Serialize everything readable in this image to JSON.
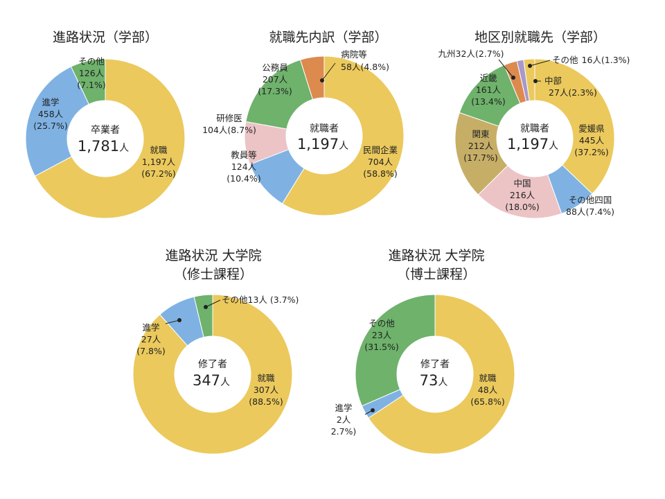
{
  "chart_data": [
    {
      "type": "pie",
      "title": "進路状況（学部）",
      "center": {
        "label": "卒業者",
        "value": "1,781",
        "unit": "人"
      },
      "slices": [
        {
          "name": "就職",
          "value": 1197,
          "count": "1,197人",
          "pct": "(67.2%)",
          "color": "#EBC95C"
        },
        {
          "name": "進学",
          "value": 458,
          "count": "458人",
          "pct": "(25.7%)",
          "color": "#7FB2E3"
        },
        {
          "name": "その他",
          "value": 126,
          "count": "126人",
          "pct": "(7.1%)",
          "color": "#6EB26B"
        }
      ]
    },
    {
      "type": "pie",
      "title": "就職先内訳（学部）",
      "center": {
        "label": "就職者",
        "value": "1,197",
        "unit": "人"
      },
      "slices": [
        {
          "name": "民間企業",
          "value": 704,
          "count": "704人",
          "pct": "(58.8%)",
          "color": "#EBC95C"
        },
        {
          "name": "教員等",
          "value": 124,
          "count": "124人",
          "pct": "(10.4%)",
          "color": "#7FB2E3"
        },
        {
          "name": "研修医",
          "value": 104,
          "count": "104人",
          "pct": "(8.7%)",
          "color": "#ECC4C6"
        },
        {
          "name": "公務員",
          "value": 207,
          "count": "207人",
          "pct": "(17.3%)",
          "color": "#6EB26B"
        },
        {
          "name": "病院等",
          "value": 58,
          "count": "58人",
          "pct": "(4.8%)",
          "color": "#DD8A4E"
        }
      ]
    },
    {
      "type": "pie",
      "title": "地区別就職先（学部）",
      "center": {
        "label": "就職者",
        "value": "1,197",
        "unit": "人"
      },
      "slices": [
        {
          "name": "愛媛県",
          "value": 445,
          "count": "445人",
          "pct": "(37.2%)",
          "color": "#EBC95C"
        },
        {
          "name": "その他四国",
          "value": 88,
          "count": "88人",
          "pct": "(7.4%)",
          "color": "#7FB2E3"
        },
        {
          "name": "中国",
          "value": 216,
          "count": "216人",
          "pct": "(18.0%)",
          "color": "#ECC4C6"
        },
        {
          "name": "関東",
          "value": 212,
          "count": "212人",
          "pct": "(17.7%)",
          "color": "#C6AE66"
        },
        {
          "name": "近畿",
          "value": 161,
          "count": "161人",
          "pct": "(13.4%)",
          "color": "#6EB26B"
        },
        {
          "name": "九州",
          "value": 32,
          "count": "32人",
          "pct": "(2.7%)",
          "color": "#DD8A4E"
        },
        {
          "name": "その他",
          "value": 16,
          "count": "16人",
          "pct": "(1.3%)",
          "color": "#A79AC9"
        },
        {
          "name": "中部",
          "value": 27,
          "count": "27人",
          "pct": "(2.3%)",
          "color": "#EBC95C"
        }
      ]
    },
    {
      "type": "pie",
      "title": "進路状況 大学院",
      "subtitle": "（修士課程）",
      "center": {
        "label": "修了者",
        "value": "347",
        "unit": "人"
      },
      "slices": [
        {
          "name": "就職",
          "value": 307,
          "count": "307人",
          "pct": "(88.5%)",
          "color": "#EBC95C"
        },
        {
          "name": "進学",
          "value": 27,
          "count": "27人",
          "pct": "(7.8%)",
          "color": "#7FB2E3"
        },
        {
          "name": "その他",
          "value": 13,
          "count": "13人",
          "pct": "(3.7%)",
          "color": "#6EB26B"
        }
      ]
    },
    {
      "type": "pie",
      "title": "進路状況 大学院",
      "subtitle": "（博士課程）",
      "center": {
        "label": "修了者",
        "value": "73",
        "unit": "人"
      },
      "slices": [
        {
          "name": "就職",
          "value": 48,
          "count": "48人",
          "pct": "(65.8%)",
          "color": "#EBC95C"
        },
        {
          "name": "進学",
          "value": 2,
          "count": "2人",
          "pct": "2.7%)",
          "color": "#7FB2E3"
        },
        {
          "name": "その他",
          "value": 23,
          "count": "23人",
          "pct": "(31.5%)",
          "color": "#6EB26B"
        }
      ]
    }
  ]
}
